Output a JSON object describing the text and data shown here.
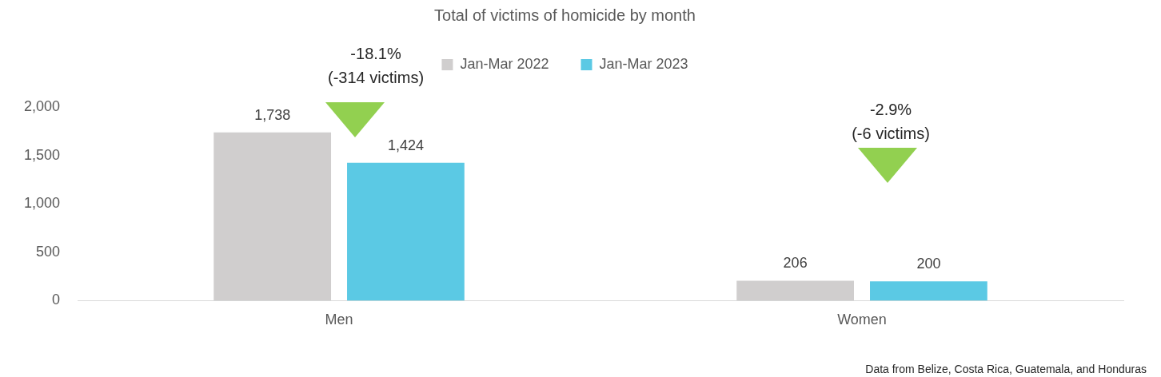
{
  "chart_data": {
    "type": "bar",
    "title": "Total of victims of homicide by month",
    "categories": [
      "Men",
      "Women"
    ],
    "series": [
      {
        "name": "Jan-Mar 2022",
        "color": "#d0cece",
        "values": [
          1738,
          206
        ],
        "value_labels": [
          "1,738",
          "206"
        ]
      },
      {
        "name": "Jan-Mar 2023",
        "color": "#5bc9e4",
        "values": [
          1424,
          200
        ],
        "value_labels": [
          "1,424",
          "200"
        ]
      }
    ],
    "ylim": [
      0,
      2000
    ],
    "yticks": [
      0,
      500,
      {
        "value": 1000,
        "label": "1,000"
      },
      {
        "value": 1500,
        "label": "1,500"
      },
      {
        "value": 2000,
        "label": "2,000"
      }
    ],
    "grid": false,
    "legend": "top",
    "annotations": [
      "-18.1%\n(-314 victims)",
      "-2.9%\n(-6 victims)",
      "Data from Belize, Costa Rica, Guatemala, and Honduras"
    ]
  }
}
